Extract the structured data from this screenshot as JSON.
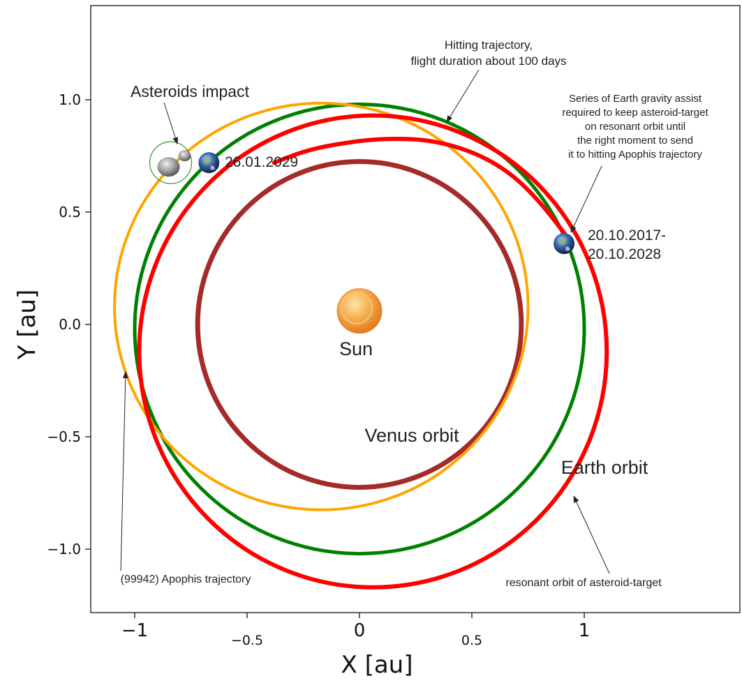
{
  "chart_data": {
    "type": "line",
    "xlabel": "X [au]",
    "ylabel": "Y [au]",
    "xlim": [
      -1.18,
      1.63
    ],
    "ylim": [
      -1.28,
      1.44
    ],
    "x_ticks": [
      {
        "value": -1,
        "label": "−1"
      },
      {
        "value": -0.5,
        "label": "−0.5"
      },
      {
        "value": 0,
        "label": "0"
      },
      {
        "value": 0.5,
        "label": "0.5"
      },
      {
        "value": 1,
        "label": "1"
      }
    ],
    "y_ticks": [
      {
        "value": 1.0,
        "label": "1.0"
      },
      {
        "value": 0.5,
        "label": "0.5"
      },
      {
        "value": 0.0,
        "label": "0.0"
      },
      {
        "value": -0.5,
        "label": "−0.5"
      },
      {
        "value": -1.0,
        "label": "−1.0"
      }
    ],
    "orbits": [
      {
        "key": "venus",
        "cx": 0.0,
        "cy": 0.0,
        "rx": 0.72,
        "ry": 0.725,
        "rotation": 0,
        "color": "#a52a2a"
      },
      {
        "key": "earth",
        "cx": 0.0,
        "cy": -0.02,
        "rx": 1.0,
        "ry": 1.0,
        "rotation": 0,
        "color": "#008000"
      },
      {
        "key": "apophis",
        "cx": -0.17,
        "cy": 0.08,
        "rx": 0.92,
        "ry": 0.905,
        "rotation": 0,
        "color": "#ffa500"
      },
      {
        "key": "resonant",
        "cx": 0.06,
        "cy": -0.12,
        "rx": 1.04,
        "ry": 1.05,
        "rotation": 0,
        "color": "#ff0000"
      }
    ],
    "hitting_trajectory": {
      "color": "#ff0000",
      "points": [
        [
          0.93,
          0.38
        ],
        [
          0.8,
          0.56
        ],
        [
          0.6,
          0.73
        ],
        [
          0.35,
          0.82
        ],
        [
          0.1,
          0.83
        ],
        [
          -0.12,
          0.8
        ],
        [
          -0.25,
          0.77
        ],
        [
          -0.38,
          0.72
        ]
      ]
    },
    "bodies": [
      {
        "key": "sun",
        "x": 0.0,
        "y": 0.06
      },
      {
        "key": "earth_2029",
        "x": -0.67,
        "y": 0.72
      },
      {
        "key": "earth_2017",
        "x": 0.91,
        "y": 0.36
      },
      {
        "key": "impact",
        "x": -0.84,
        "y": 0.72
      }
    ]
  },
  "labels": {
    "sun": "Sun",
    "venus_orbit": "Venus orbit",
    "earth_orbit": "Earth orbit",
    "asteroids_impact": "Asteroids impact",
    "date_2029": "26.01.2029",
    "date_2017_line1": "20.10.2017-",
    "date_2017_line2": "20.10.2028",
    "hitting_line1": "Hitting trajectory,",
    "hitting_line2": "flight duration about 100 days",
    "series_line1": "Series of Earth gravity assist",
    "series_line2": "required to keep asteroid-target",
    "series_line3": "on resonant orbit until",
    "series_line4": "the right moment to send",
    "series_line5": "it to hitting Apophis trajectory",
    "apophis_trajectory": "(99942) Apophis trajectory",
    "resonant_orbit": "resonant orbit of asteroid-target"
  }
}
